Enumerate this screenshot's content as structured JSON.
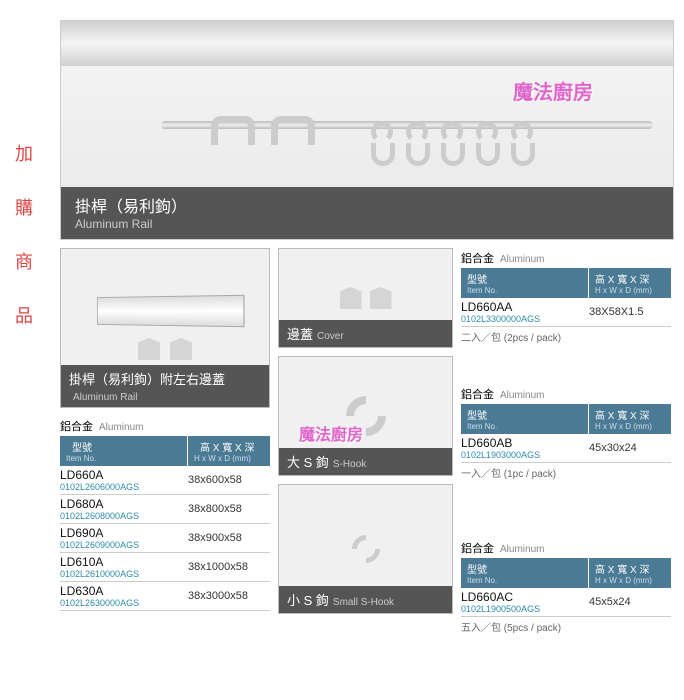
{
  "sidebar": {
    "c1": "加",
    "c2": "購",
    "c3": "商",
    "c4": "品"
  },
  "hero": {
    "title_cn": "掛桿（易利鉤）",
    "title_en": "Aluminum Rail",
    "watermark": "魔法廚房"
  },
  "railbox": {
    "title_cn": "掛桿（易利鉤）附左右邊蓋",
    "title_en": "Aluminum Rail"
  },
  "material": {
    "cn": "鋁合金",
    "en": "Aluminum"
  },
  "header": {
    "col1_cn": "型號",
    "col1_en": "Item No.",
    "col2_cn": "高 X 寬 X 深",
    "col2_en": "H x W x D (mm)"
  },
  "rails": [
    {
      "model": "LD660A",
      "code": "0102L2606000AGS",
      "dim": "38x600x58"
    },
    {
      "model": "LD680A",
      "code": "0102L2608000AGS",
      "dim": "38x800x58"
    },
    {
      "model": "LD690A",
      "code": "0102L2609000AGS",
      "dim": "38x900x58"
    },
    {
      "model": "LD610A",
      "code": "0102L2610000AGS",
      "dim": "38x1000x58"
    },
    {
      "model": "LD630A",
      "code": "0102L2630000AGS",
      "dim": "38x3000x58"
    }
  ],
  "cover": {
    "title_cn": "邊蓋",
    "title_en": "Cover"
  },
  "bighook": {
    "title_cn": "大 S 鉤",
    "title_en": "S-Hook"
  },
  "smallhook": {
    "title_cn": "小 S 鉤",
    "title_en": "Small S-Hook"
  },
  "spec1": {
    "model": "LD660AA",
    "code": "0102L3300000AGS",
    "dim": "38X58X1.5",
    "note": "二入／包 (2pcs / pack)"
  },
  "spec2": {
    "model": "LD660AB",
    "code": "0102L1903000AGS",
    "dim": "45x30x24",
    "note": "一入／包 (1pc / pack)"
  },
  "spec3": {
    "model": "LD660AC",
    "code": "0102L1900500AGS",
    "dim": "45x5x24",
    "note": "五入／包 (5pcs / pack)"
  },
  "watermark2": "魔法廚房",
  "colors": {
    "header_bg": "#4a7a94",
    "label_bg": "#555555",
    "code_color": "#2a8aa8",
    "sidebar_color": "#d44444",
    "watermark_color": "#e066cc"
  }
}
